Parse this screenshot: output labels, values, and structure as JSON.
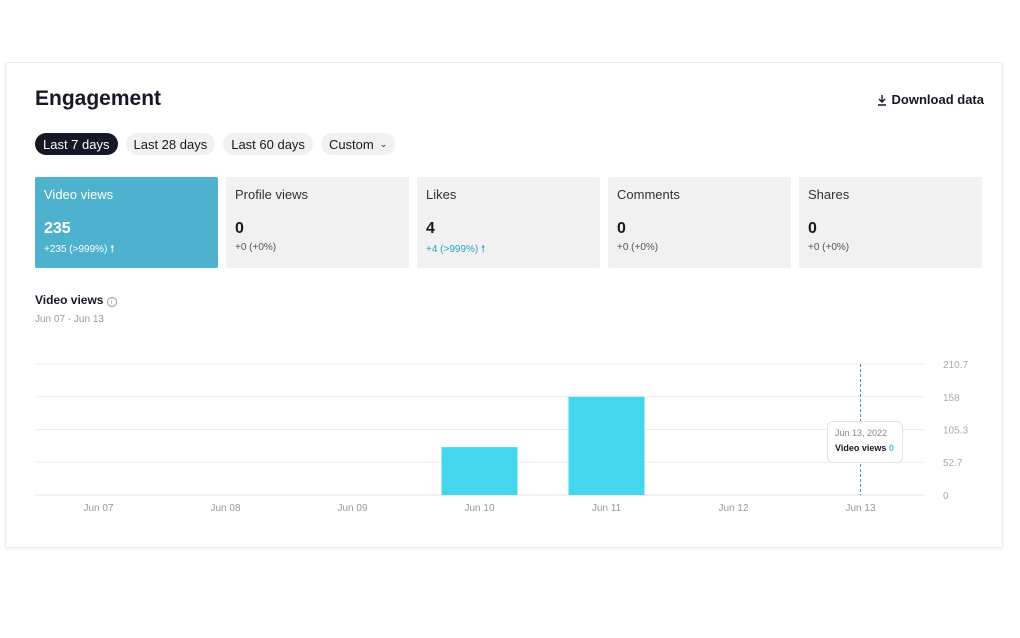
{
  "header": {
    "title": "Engagement",
    "download_label": "Download data"
  },
  "ranges": [
    {
      "label": "Last 7 days",
      "active": true
    },
    {
      "label": "Last 28 days"
    },
    {
      "label": "Last 60 days"
    },
    {
      "label": "Custom"
    }
  ],
  "metrics": [
    {
      "label": "Video views",
      "value": "235",
      "delta": "+235 (>999%)",
      "trend": "up",
      "active": true
    },
    {
      "label": "Profile views",
      "value": "0",
      "delta": "+0 (+0%)"
    },
    {
      "label": "Likes",
      "value": "4",
      "delta": "+4 (>999%)",
      "trend": "up"
    },
    {
      "label": "Comments",
      "value": "0",
      "delta": "+0 (+0%)"
    },
    {
      "label": "Shares",
      "value": "0",
      "delta": "+0 (+0%)"
    }
  ],
  "chart": {
    "title": "Video views",
    "date_range": "Jun 07 - Jun 13"
  },
  "tooltip": {
    "date": "Jun 13, 2022",
    "label": "Video views",
    "value": "0"
  },
  "chart_data": {
    "type": "bar",
    "categories": [
      "Jun 07",
      "Jun 08",
      "Jun 09",
      "Jun 10",
      "Jun 11",
      "Jun 12",
      "Jun 13"
    ],
    "values": [
      0,
      0,
      0,
      77,
      158,
      0,
      0
    ],
    "yticks": [
      "0",
      "52.7",
      "105.3",
      "158",
      "210.7"
    ],
    "ylim": [
      0,
      210.7
    ],
    "grid": true,
    "bar_color": "#43d6ec",
    "highlight_category": "Jun 13"
  }
}
